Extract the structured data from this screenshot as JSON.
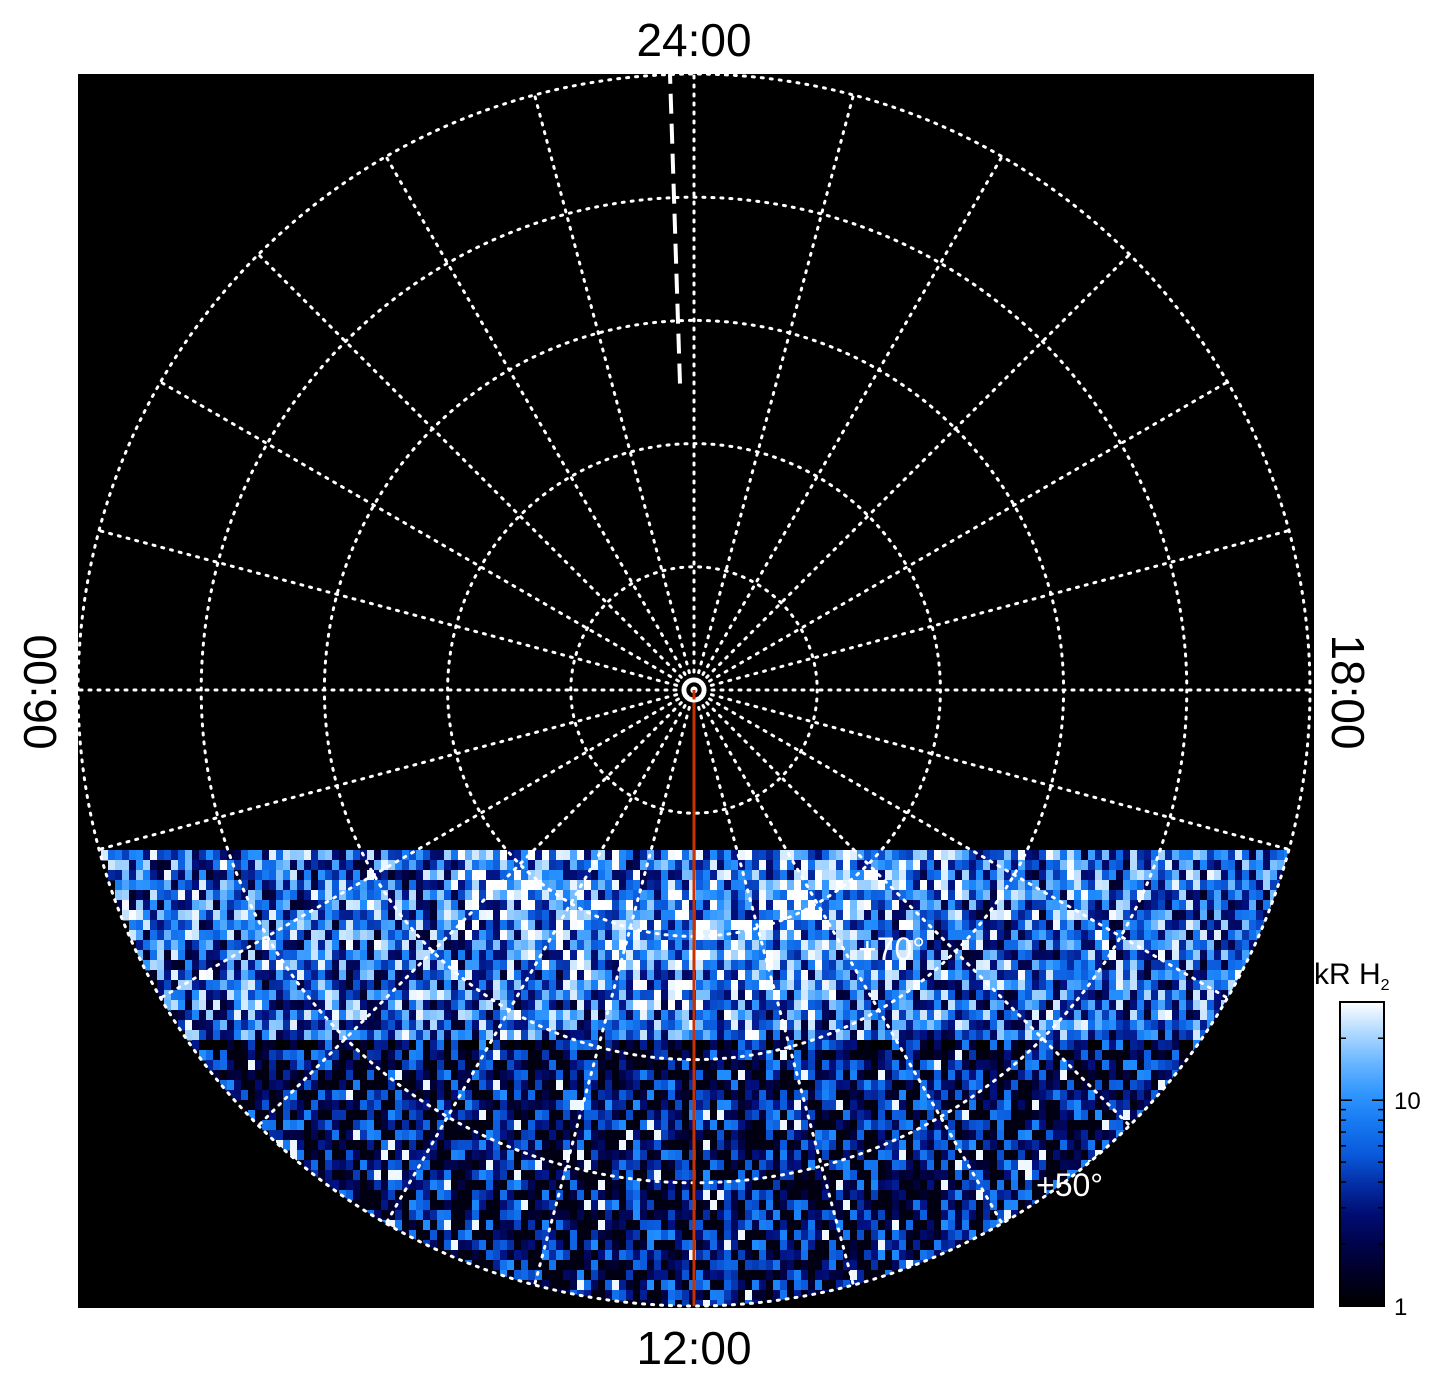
{
  "chart_data": {
    "type": "heatmap",
    "projection": "polar",
    "local_time_labels": {
      "top": "24:00",
      "bottom": "12:00",
      "left": "06:00",
      "right": "18:00"
    },
    "latitude_labels": [
      "+70°",
      "+50°"
    ],
    "latitude_rings_deg": [
      90,
      80,
      70,
      60,
      50,
      40
    ],
    "meridian_step_hours": 1,
    "colorbar": {
      "title": "kR H",
      "title_subscript": "2",
      "scale": "log",
      "range": [
        1,
        30
      ],
      "tick_labels": [
        "1",
        "10"
      ],
      "tick_values": [
        1,
        10
      ]
    },
    "colors": {
      "background": "#000000",
      "grid": "#ffffff",
      "noon_line": "#c83200",
      "colormap": [
        "#000000",
        "#00003c",
        "#001080",
        "#0a5adc",
        "#1e8cff",
        "#7cc0ff",
        "#ffffff"
      ]
    },
    "annotations": {
      "dashed_meridian": "24:00",
      "solid_meridian": "12:00"
    }
  }
}
